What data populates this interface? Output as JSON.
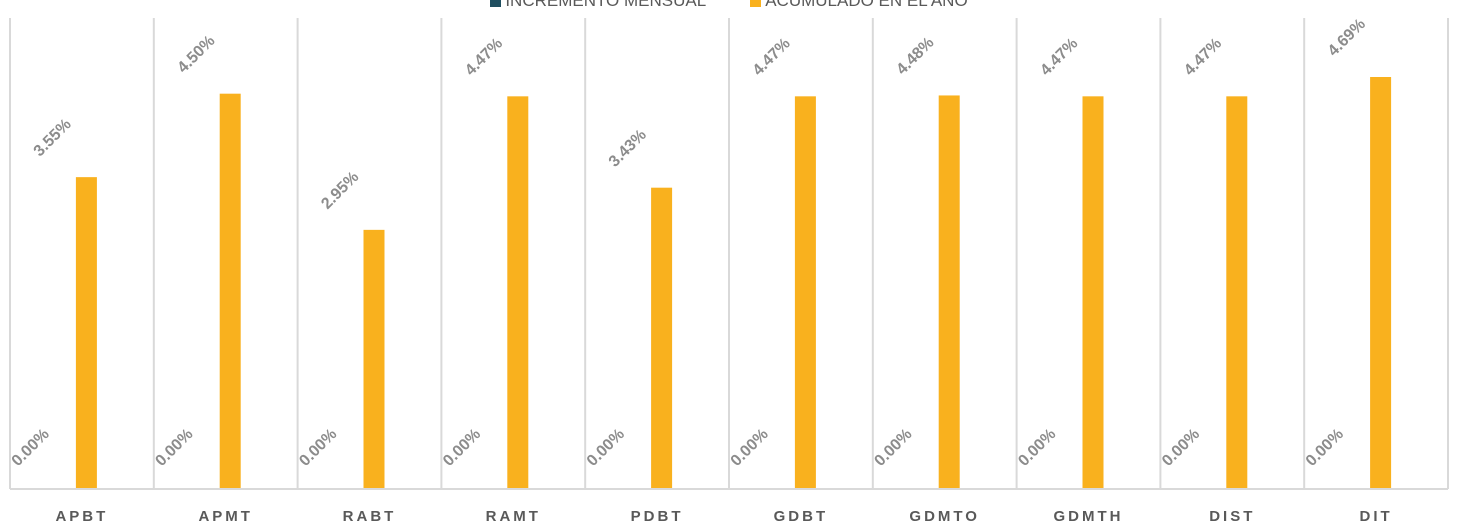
{
  "chart_data": {
    "type": "bar",
    "categories": [
      "APBT",
      "APMT",
      "RABT",
      "RAMT",
      "PDBT",
      "GDBT",
      "GDMTO",
      "GDMTH",
      "DIST",
      "DIT"
    ],
    "series": [
      {
        "name": "INCREMENTO MENSUAL",
        "color": "#1F4E5F",
        "values": [
          0.0,
          0.0,
          0.0,
          0.0,
          0.0,
          0.0,
          0.0,
          0.0,
          0.0,
          0.0
        ],
        "labels": [
          "0.00%",
          "0.00%",
          "0.00%",
          "0.00%",
          "0.00%",
          "0.00%",
          "0.00%",
          "0.00%",
          "0.00%",
          "0.00%"
        ]
      },
      {
        "name": "ACUMULADO EN EL AÑO",
        "color": "#F9B11E",
        "values": [
          3.55,
          4.5,
          2.95,
          4.47,
          3.43,
          4.47,
          4.48,
          4.47,
          4.47,
          4.69
        ],
        "labels": [
          "3.55%",
          "4.50%",
          "2.95%",
          "4.47%",
          "3.43%",
          "4.47%",
          "4.48%",
          "4.47%",
          "4.47%",
          "4.69%"
        ]
      }
    ],
    "title": "",
    "xlabel": "",
    "ylabel": "",
    "ylim": [
      0,
      5.0
    ],
    "grid": false,
    "legend_position": "top"
  }
}
